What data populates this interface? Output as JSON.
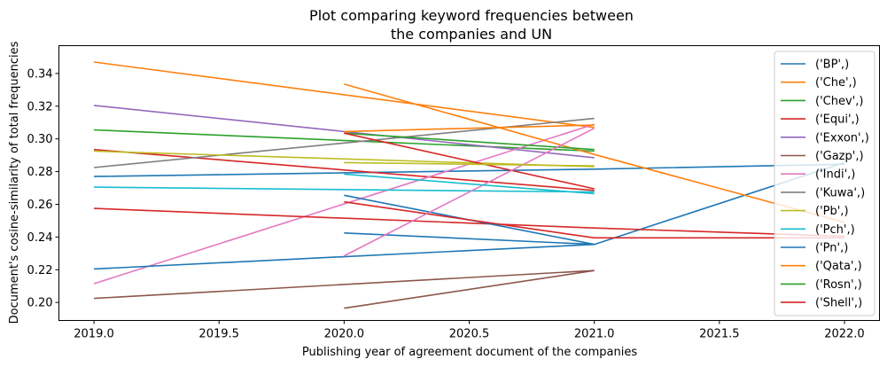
{
  "chart_data": {
    "type": "line",
    "title": "Plot comparing keyword frequencies between",
    "title_line2": "the companies and UN",
    "xlabel": "Publishing year of agreement document of the companies",
    "ylabel": "Document's cosine-similarity of total frequencies",
    "xlim": [
      2018.86,
      2022.14
    ],
    "ylim": [
      0.189,
      0.357
    ],
    "x_ticks": [
      2019.0,
      2019.5,
      2020.0,
      2020.5,
      2021.0,
      2021.5,
      2022.0
    ],
    "x_tick_labels": [
      "2019.0",
      "2019.5",
      "2020.0",
      "2020.5",
      "2021.0",
      "2021.5",
      "2022.0"
    ],
    "y_ticks": [
      0.2,
      0.22,
      0.24,
      0.26,
      0.28,
      0.3,
      0.32,
      0.34
    ],
    "y_tick_labels": [
      "0.20",
      "0.22",
      "0.24",
      "0.26",
      "0.28",
      "0.30",
      "0.32",
      "0.34"
    ],
    "grid": false,
    "legend_position": "right",
    "series": [
      {
        "name": "('BP',)",
        "color": "#1f77b4",
        "x": [
          2019,
          2021,
          2022
        ],
        "y": [
          0.277,
          0.2815,
          0.2845
        ]
      },
      {
        "name": "('Che',)",
        "color": "#ff7f0e",
        "x": [
          2019,
          2021
        ],
        "y": [
          0.347,
          0.307
        ]
      },
      {
        "name": "('Chev',)",
        "color": "#2ca02c",
        "x": [
          2019,
          2021
        ],
        "y": [
          0.3055,
          0.2925
        ]
      },
      {
        "name": "('Equi',)",
        "color": "#d62728",
        "x": [
          2019,
          2021
        ],
        "y": [
          0.2935,
          0.2685
        ]
      },
      {
        "name": "('Exxon',)",
        "color": "#9467bd",
        "x": [
          2019,
          2021
        ],
        "y": [
          0.3205,
          0.2885
        ]
      },
      {
        "name": "('Gazp',)",
        "color": "#8c564b",
        "x": [
          2019,
          2021
        ],
        "y": [
          0.2025,
          0.2195
        ]
      },
      {
        "name": "('Indi',)",
        "color": "#e377c2",
        "x": [
          2019,
          2021
        ],
        "y": [
          0.2115,
          0.309
        ]
      },
      {
        "name": "('Kuwa',)",
        "color": "#7f7f7f",
        "x": [
          2019,
          2021
        ],
        "y": [
          0.2825,
          0.3125
        ]
      },
      {
        "name": "('Pb',)",
        "color": "#bcbd22",
        "x": [
          2019,
          2021
        ],
        "y": [
          0.2925,
          0.283
        ]
      },
      {
        "name": "('Pch',)",
        "color": "#17becf",
        "x": [
          2019,
          2021
        ],
        "y": [
          0.2705,
          0.2675
        ]
      },
      {
        "name": "('Pn',)",
        "color": "#1f77b4",
        "x": [
          2019,
          2021,
          2022
        ],
        "y": [
          0.2205,
          0.2355,
          0.2855
        ]
      },
      {
        "name": "('Qata',)",
        "color": "#ff7f0e",
        "x": [
          2020,
          2021,
          2022
        ],
        "y": [
          0.3335,
          0.2905,
          0.249
        ]
      },
      {
        "name": "('Rosn',)",
        "color": "#2ca02c",
        "x": [
          2020,
          2021
        ],
        "y": [
          0.3035,
          0.2935
        ]
      },
      {
        "name": "('Shell',)",
        "color": "#d62728",
        "x": [
          2019,
          2021,
          2022
        ],
        "y": [
          0.2575,
          0.2455,
          0.2405
        ]
      },
      {
        "name": "",
        "color": "#1f77b4",
        "x": [
          2020,
          2021
        ],
        "y": [
          0.2425,
          0.2355
        ]
      },
      {
        "name": "",
        "color": "#1f77b4",
        "x": [
          2020,
          2021
        ],
        "y": [
          0.2655,
          0.2355
        ]
      },
      {
        "name": "",
        "color": "#d62728",
        "x": [
          2020,
          2021
        ],
        "y": [
          0.3035,
          0.2695
        ]
      },
      {
        "name": "",
        "color": "#d62728",
        "x": [
          2020,
          2021,
          2022
        ],
        "y": [
          0.2615,
          0.2395,
          0.2395
        ]
      },
      {
        "name": "",
        "color": "#ff7f0e",
        "x": [
          2020,
          2021
        ],
        "y": [
          0.3045,
          0.3085
        ]
      },
      {
        "name": "",
        "color": "#8c564b",
        "x": [
          2020,
          2021
        ],
        "y": [
          0.1965,
          0.2195
        ]
      },
      {
        "name": "",
        "color": "#e377c2",
        "x": [
          2020,
          2021
        ],
        "y": [
          0.2285,
          0.3065
        ]
      },
      {
        "name": "",
        "color": "#bcbd22",
        "x": [
          2020,
          2021
        ],
        "y": [
          0.2855,
          0.2835
        ]
      },
      {
        "name": "",
        "color": "#17becf",
        "x": [
          2020,
          2021
        ],
        "y": [
          0.2785,
          0.2665
        ]
      }
    ]
  }
}
